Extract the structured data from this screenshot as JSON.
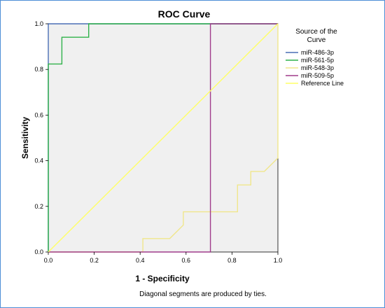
{
  "chart_data": {
    "type": "line",
    "title": "ROC Curve",
    "xlabel": "1 - Specificity",
    "ylabel": "Sensitivity",
    "xlim": [
      0,
      1
    ],
    "ylim": [
      0,
      1
    ],
    "x_ticks": [
      "0.0",
      "0.2",
      "0.4",
      "0.6",
      "0.8",
      "1.0"
    ],
    "y_ticks": [
      "0.0",
      "0.2",
      "0.4",
      "0.6",
      "0.8",
      "1.0"
    ],
    "footnote": "Diagonal segments are produced by ties.",
    "legend": {
      "title": "Source of the Curve",
      "placement": "right"
    },
    "colors": {
      "plot_background": "#f0f0f0"
    },
    "series": [
      {
        "name": "miR-486-3p",
        "color": "#4a6fb5",
        "points": [
          [
            0,
            0
          ],
          [
            0,
            1
          ],
          [
            1,
            1
          ]
        ]
      },
      {
        "name": "miR-561-5p",
        "color": "#2fb24a",
        "points": [
          [
            0,
            0
          ],
          [
            0,
            0.824
          ],
          [
            0.059,
            0.824
          ],
          [
            0.059,
            0.941
          ],
          [
            0.176,
            0.941
          ],
          [
            0.176,
            1
          ],
          [
            1,
            1
          ]
        ]
      },
      {
        "name": "miR-548-3p",
        "color": "#f0e68c",
        "points": [
          [
            0,
            0
          ],
          [
            0.412,
            0
          ],
          [
            0.412,
            0.059
          ],
          [
            0.529,
            0.059
          ],
          [
            0.588,
            0.118
          ],
          [
            0.588,
            0.176
          ],
          [
            0.824,
            0.176
          ],
          [
            0.824,
            0.294
          ],
          [
            0.882,
            0.294
          ],
          [
            0.882,
            0.353
          ],
          [
            0.941,
            0.353
          ],
          [
            1,
            0.412
          ],
          [
            1,
            1
          ]
        ]
      },
      {
        "name": "miR-509-5p",
        "color": "#a03c8c",
        "points": [
          [
            0,
            0
          ],
          [
            0.706,
            0
          ],
          [
            0.706,
            1
          ],
          [
            1,
            1
          ]
        ]
      },
      {
        "name": "Reference Line",
        "color": "#ffff66",
        "points": [
          [
            0,
            0
          ],
          [
            1,
            1
          ]
        ]
      }
    ]
  }
}
